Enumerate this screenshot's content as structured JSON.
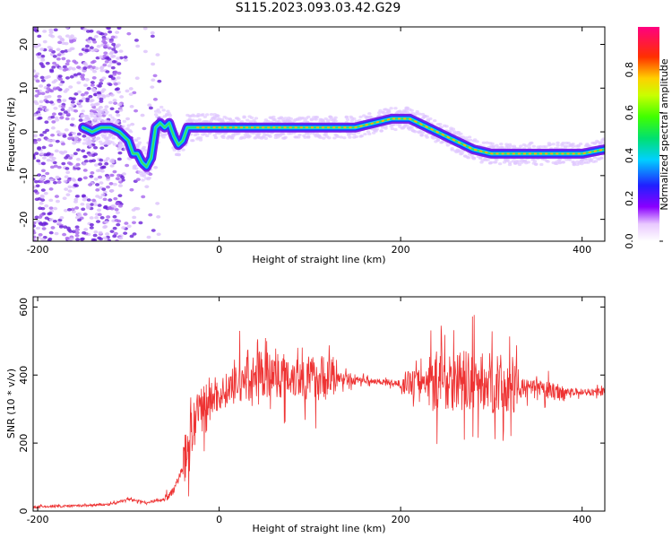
{
  "title": "S115.2023.093.03.42.G29",
  "chart_data": [
    {
      "type": "heatmap",
      "xlabel": "Height of straight line (km)",
      "ylabel": "Frequency (Hz)",
      "xlim": [
        -205,
        425
      ],
      "ylim": [
        -25,
        24
      ],
      "xticks": [
        "-200",
        "0",
        "200",
        "400"
      ],
      "yticks": [
        "20",
        "10",
        "0",
        "-10",
        "-20"
      ],
      "ridge": {
        "x": [
          -150,
          -140,
          -130,
          -120,
          -110,
          -100,
          -95,
          -90,
          -85,
          -80,
          -75,
          -70,
          -65,
          -60,
          -55,
          -50,
          -45,
          -40,
          -35,
          -30,
          -20,
          0,
          50,
          100,
          150,
          170,
          190,
          200,
          210,
          220,
          240,
          260,
          280,
          300,
          350,
          400,
          425
        ],
        "y": [
          1,
          0,
          1,
          1,
          0,
          -2,
          -5,
          -5,
          -7,
          -8,
          -6,
          1,
          2,
          1,
          2,
          -1,
          -3,
          -2,
          1,
          1,
          1,
          1,
          1,
          1,
          1,
          2,
          3,
          3,
          3,
          2,
          0,
          -2,
          -4,
          -5,
          -5,
          -5,
          -4
        ]
      },
      "colorbar": {
        "label": "Normalized spectral amplitude",
        "ticks": [
          "0.0",
          "0.2",
          "0.4",
          "0.6",
          "0.8"
        ],
        "range": [
          0,
          1
        ]
      }
    },
    {
      "type": "line",
      "xlabel": "Height of straight line (km)",
      "ylabel": "SNR (10 * v/v)",
      "xlim": [
        -205,
        425
      ],
      "ylim": [
        0,
        630
      ],
      "xticks": [
        "-200",
        "0",
        "200",
        "400"
      ],
      "yticks": [
        "600",
        "400",
        "200",
        "0"
      ],
      "color": "#ee3333",
      "series": [
        {
          "x": [
            -205,
            -180,
            -150,
            -120,
            -100,
            -80,
            -60,
            -50,
            -40,
            -30,
            -20,
            -10,
            0,
            20,
            50,
            80,
            100,
            120,
            140,
            160,
            180,
            200,
            220,
            240,
            260,
            280,
            300,
            320,
            340,
            360,
            380,
            400,
            425
          ],
          "values": [
            12,
            14,
            16,
            20,
            35,
            25,
            35,
            60,
            130,
            230,
            300,
            330,
            340,
            380,
            400,
            400,
            390,
            395,
            388,
            385,
            380,
            375,
            380,
            385,
            385,
            380,
            375,
            365,
            360,
            355,
            350,
            350,
            350
          ]
        }
      ]
    }
  ]
}
